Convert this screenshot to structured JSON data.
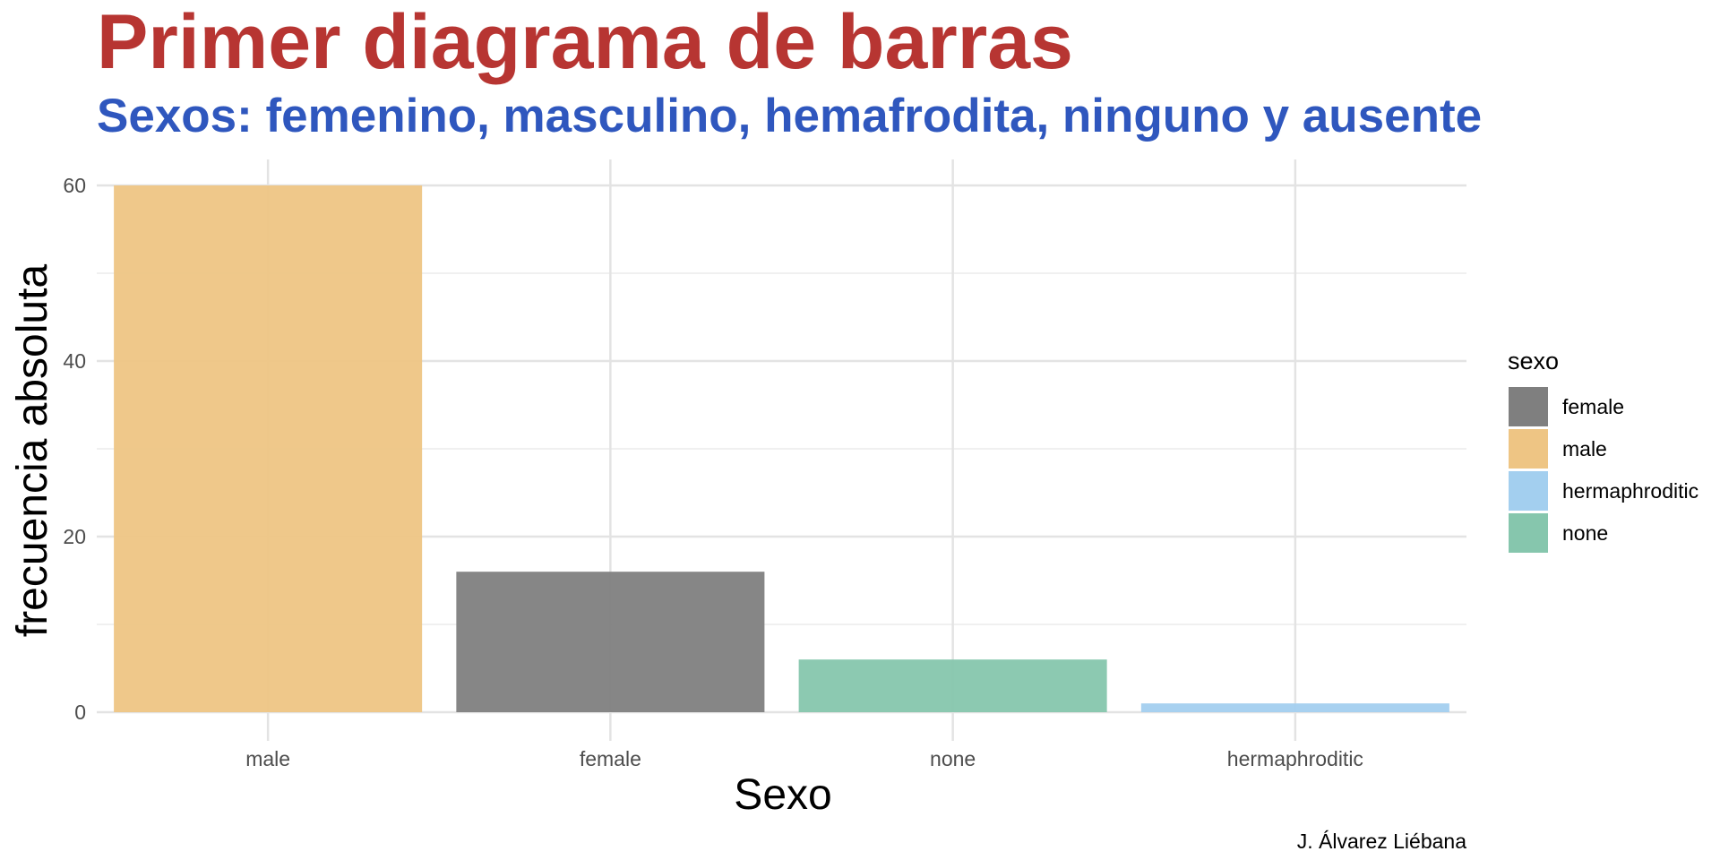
{
  "chart_data": {
    "type": "bar",
    "title": "Primer diagrama de barras",
    "subtitle": "Sexos: femenino, masculino, hemafrodita, ninguno y ausente",
    "xlabel": "Sexo",
    "ylabel": "frecuencia absoluta",
    "caption": "J. Álvarez Liébana",
    "categories": [
      "male",
      "female",
      "none",
      "hermaphroditic"
    ],
    "values": [
      60,
      16,
      6,
      1
    ],
    "ylim": [
      0,
      60
    ],
    "yticks": [
      "0",
      "20",
      "40",
      "60"
    ],
    "grid": true,
    "legend": {
      "title": "sexo",
      "position": "right",
      "entries": [
        "female",
        "male",
        "hermaphroditic",
        "none"
      ]
    },
    "colors": {
      "female": "#7f7f7f",
      "male": "#eec584",
      "hermaphroditic": "#a3cfef",
      "none": "#86c6ad"
    },
    "title_color": "#b73532",
    "subtitle_color": "#2f57be"
  }
}
